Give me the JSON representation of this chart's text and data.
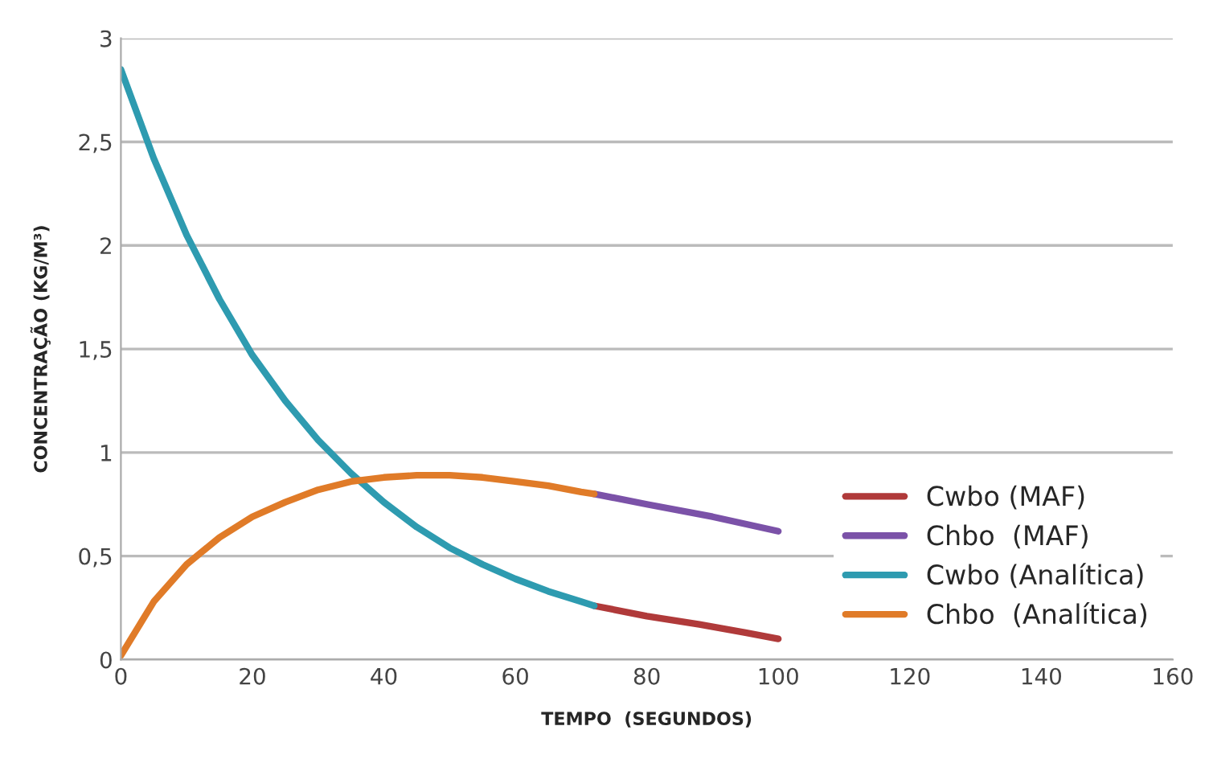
{
  "chart_data": {
    "type": "line",
    "xlabel": "TEMPO  (SEGUNDOS)",
    "ylabel": "CONCENTRAÇÃO (KG/M³)",
    "xlim": [
      0,
      160
    ],
    "xticks": [
      0,
      20,
      40,
      60,
      80,
      100,
      120,
      140,
      160
    ],
    "ylim": [
      0,
      3
    ],
    "yticks": [
      {
        "value": 0,
        "label": "0"
      },
      {
        "value": 0.5,
        "label": "0,5"
      },
      {
        "value": 1,
        "label": "1"
      },
      {
        "value": 1.5,
        "label": "1,5"
      },
      {
        "value": 2,
        "label": "2"
      },
      {
        "value": 2.5,
        "label": "2,5"
      },
      {
        "value": 3,
        "label": "3"
      }
    ],
    "grid": "y",
    "legend": "bottom right",
    "marker": "none",
    "line_style": "solid",
    "series": [
      {
        "name": "Cwbo (MAF)",
        "color": "#b03a3a",
        "x": [
          72,
          80,
          88,
          95,
          100
        ],
        "values": [
          0.26,
          0.21,
          0.17,
          0.13,
          0.1
        ]
      },
      {
        "name": "Chbo  (MAF)",
        "color": "#7b52a8",
        "x": [
          72,
          80,
          90,
          100
        ],
        "values": [
          0.8,
          0.75,
          0.69,
          0.62
        ]
      },
      {
        "name": "Cwbo (Analítica)",
        "color": "#2e9bb0",
        "x": [
          0,
          5,
          10,
          15,
          20,
          25,
          30,
          35,
          40,
          45,
          50,
          55,
          60,
          65,
          70,
          72
        ],
        "values": [
          2.85,
          2.42,
          2.05,
          1.74,
          1.47,
          1.25,
          1.06,
          0.9,
          0.76,
          0.64,
          0.54,
          0.46,
          0.39,
          0.33,
          0.28,
          0.26
        ]
      },
      {
        "name": "Chbo  (Analítica)",
        "color": "#e07b28",
        "x": [
          0,
          5,
          10,
          15,
          20,
          25,
          30,
          35,
          40,
          45,
          50,
          55,
          60,
          65,
          70,
          72
        ],
        "values": [
          0.02,
          0.28,
          0.46,
          0.59,
          0.69,
          0.76,
          0.82,
          0.86,
          0.88,
          0.89,
          0.89,
          0.88,
          0.86,
          0.84,
          0.81,
          0.8
        ]
      }
    ]
  }
}
